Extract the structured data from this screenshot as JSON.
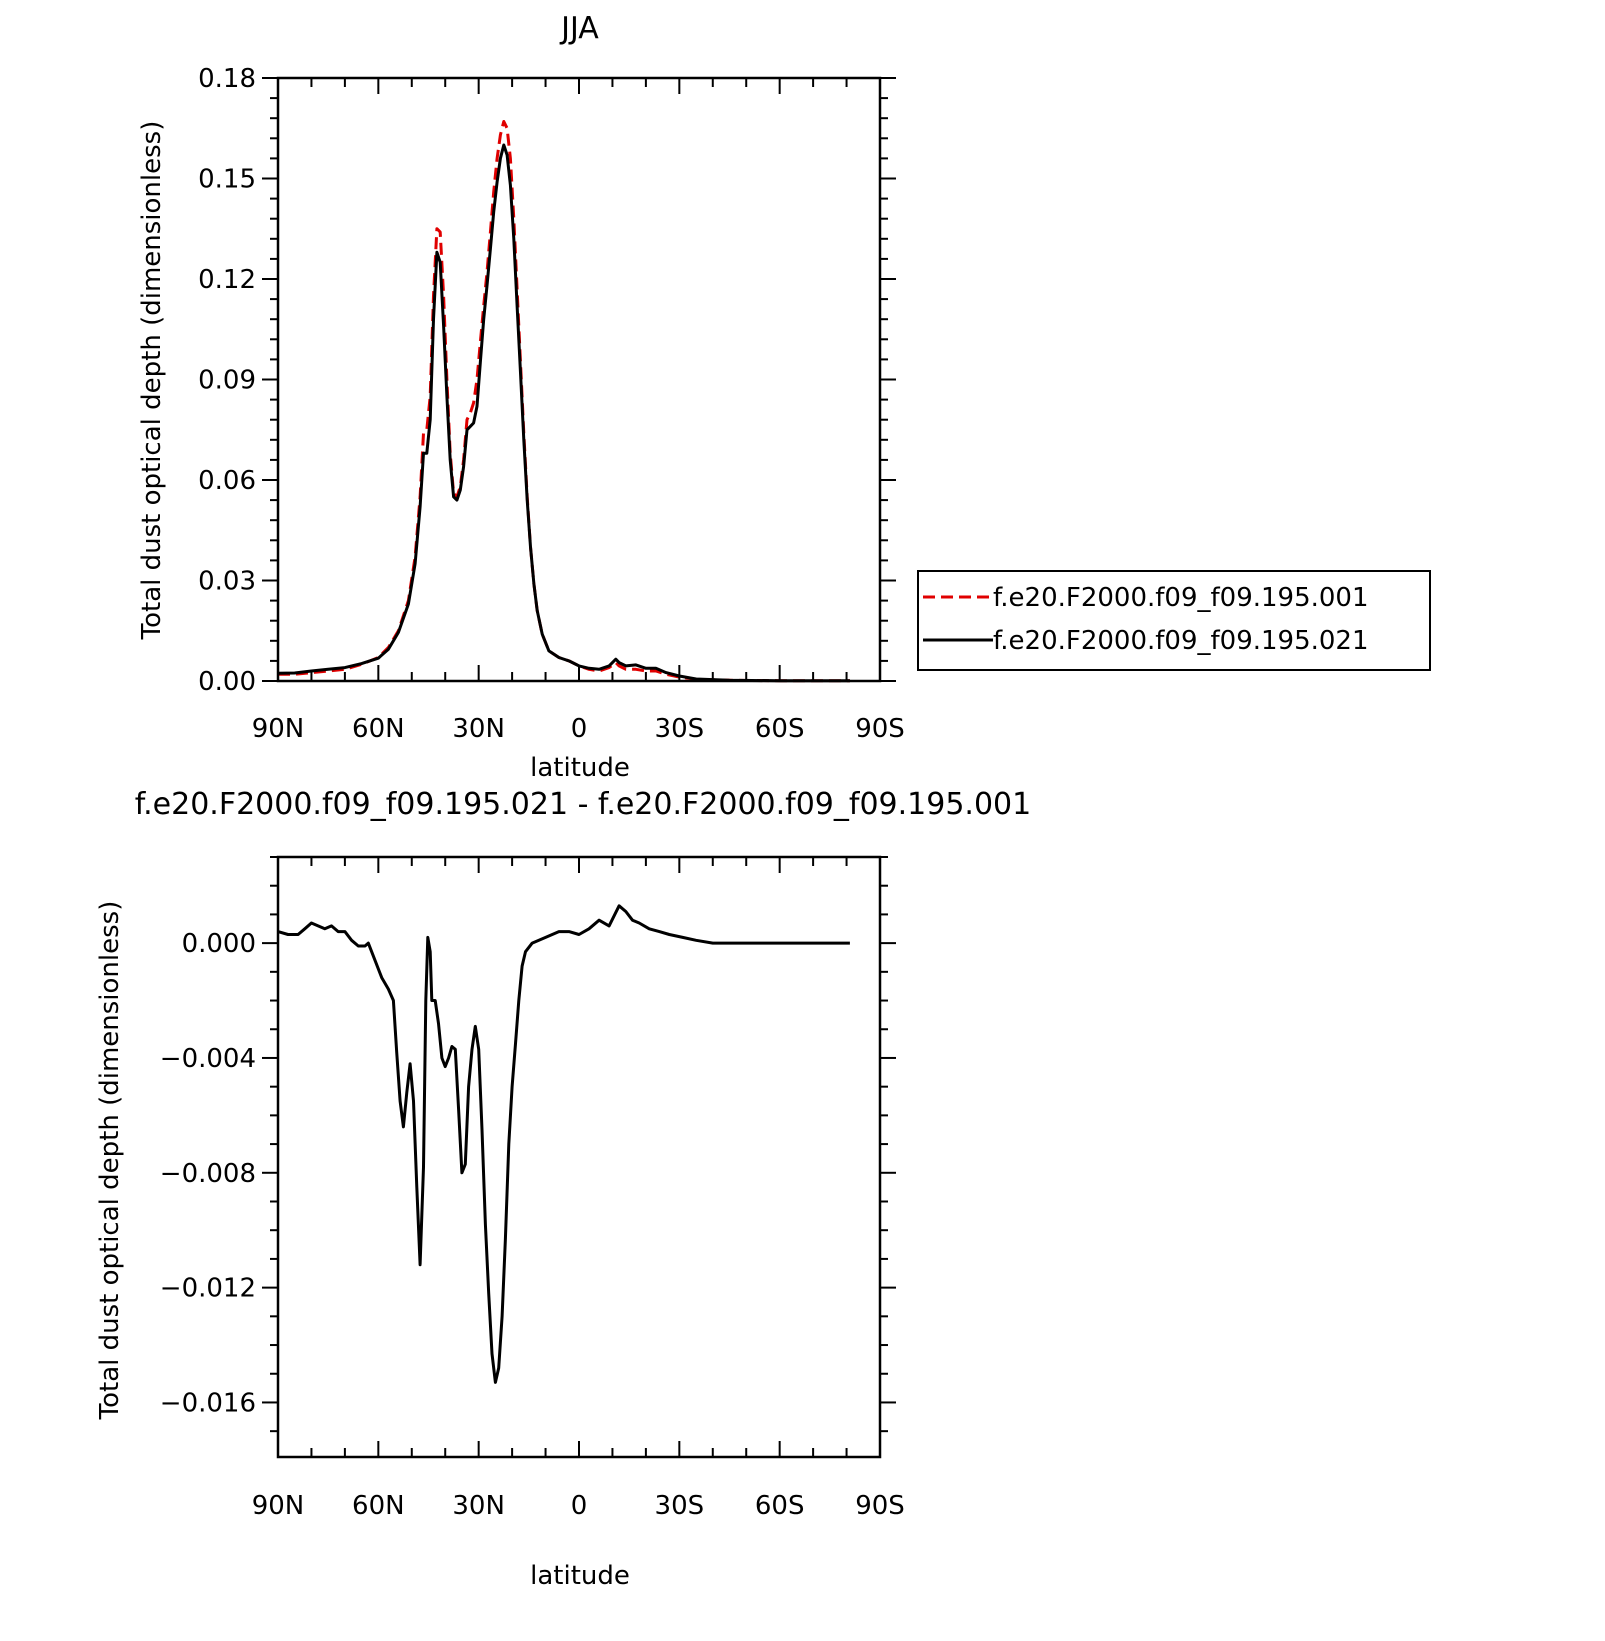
{
  "chart_data": [
    {
      "type": "line",
      "title": "JJA",
      "xlabel": "latitude",
      "ylabel": "Total dust optical depth (dimensionless)",
      "xlim": [
        90,
        -90
      ],
      "ylim": [
        0,
        0.18
      ],
      "xticks": [
        {
          "value": 90,
          "label": "90N"
        },
        {
          "value": 60,
          "label": "60N"
        },
        {
          "value": 30,
          "label": "30N"
        },
        {
          "value": 0,
          "label": "0"
        },
        {
          "value": -30,
          "label": "30S"
        },
        {
          "value": -60,
          "label": "60S"
        },
        {
          "value": -90,
          "label": "90S"
        }
      ],
      "yticks": [
        {
          "value": 0,
          "label": "0.00"
        },
        {
          "value": 0.03,
          "label": "0.03"
        },
        {
          "value": 0.06,
          "label": "0.06"
        },
        {
          "value": 0.09,
          "label": "0.09"
        },
        {
          "value": 0.12,
          "label": "0.12"
        },
        {
          "value": 0.15,
          "label": "0.15"
        },
        {
          "value": 0.18,
          "label": "0.18"
        }
      ],
      "legend_position": "right",
      "series": [
        {
          "name": "f.e20.F2000.f09_f09.195.001",
          "color": "#e00000",
          "dash": "dashed",
          "points": [
            [
              90,
              0.002
            ],
            [
              85,
              0.002
            ],
            [
              80,
              0.0025
            ],
            [
              75,
              0.003
            ],
            [
              70,
              0.0035
            ],
            [
              65,
              0.005
            ],
            [
              60,
              0.007
            ],
            [
              57,
              0.01
            ],
            [
              54,
              0.015
            ],
            [
              51,
              0.024
            ],
            [
              49,
              0.037
            ],
            [
              47.5,
              0.055
            ],
            [
              46.5,
              0.074
            ],
            [
              45.5,
              0.075
            ],
            [
              44.5,
              0.085
            ],
            [
              43.5,
              0.115
            ],
            [
              42.5,
              0.135
            ],
            [
              41.5,
              0.134
            ],
            [
              40.5,
              0.115
            ],
            [
              39.5,
              0.09
            ],
            [
              38.5,
              0.068
            ],
            [
              37.5,
              0.056
            ],
            [
              36.5,
              0.055
            ],
            [
              35.5,
              0.058
            ],
            [
              34.5,
              0.066
            ],
            [
              33.5,
              0.078
            ],
            [
              32.5,
              0.08
            ],
            [
              31.5,
              0.083
            ],
            [
              30.5,
              0.09
            ],
            [
              29.5,
              0.101
            ],
            [
              28.5,
              0.112
            ],
            [
              27.5,
              0.122
            ],
            [
              26.5,
              0.134
            ],
            [
              25.5,
              0.146
            ],
            [
              24.5,
              0.156
            ],
            [
              23.5,
              0.163
            ],
            [
              22.5,
              0.167
            ],
            [
              21.5,
              0.165
            ],
            [
              20.5,
              0.156
            ],
            [
              19.5,
              0.138
            ],
            [
              18.5,
              0.117
            ],
            [
              17.5,
              0.095
            ],
            [
              16.5,
              0.074
            ],
            [
              15.5,
              0.055
            ],
            [
              14.5,
              0.04
            ],
            [
              13.5,
              0.029
            ],
            [
              12.5,
              0.021
            ],
            [
              11,
              0.014
            ],
            [
              9,
              0.009
            ],
            [
              6,
              0.007
            ],
            [
              3,
              0.006
            ],
            [
              0,
              0.0045
            ],
            [
              -3,
              0.0035
            ],
            [
              -6,
              0.003
            ],
            [
              -9,
              0.004
            ],
            [
              -11,
              0.0055
            ],
            [
              -12,
              0.0045
            ],
            [
              -14,
              0.0035
            ],
            [
              -17,
              0.0035
            ],
            [
              -20,
              0.003
            ],
            [
              -23,
              0.003
            ],
            [
              -26,
              0.002
            ],
            [
              -30,
              0.0012
            ],
            [
              -35,
              0.0005
            ],
            [
              -45,
              0.0002
            ],
            [
              -60,
              0.0001
            ],
            [
              -75,
              0.0001
            ],
            [
              -81,
              0.0001
            ]
          ]
        },
        {
          "name": "f.e20.F2000.f09_f09.195.021",
          "color": "#000000",
          "dash": "solid",
          "points": [
            [
              90,
              0.0023
            ],
            [
              85,
              0.0024
            ],
            [
              80,
              0.003
            ],
            [
              75,
              0.0035
            ],
            [
              70,
              0.004
            ],
            [
              65,
              0.0052
            ],
            [
              60,
              0.0068
            ],
            [
              57,
              0.0095
            ],
            [
              54,
              0.0145
            ],
            [
              51,
              0.023
            ],
            [
              49,
              0.035
            ],
            [
              47.5,
              0.052
            ],
            [
              46.5,
              0.068
            ],
            [
              45.5,
              0.068
            ],
            [
              44.5,
              0.078
            ],
            [
              43.5,
              0.108
            ],
            [
              42.5,
              0.128
            ],
            [
              41.5,
              0.125
            ],
            [
              40.5,
              0.106
            ],
            [
              39.5,
              0.085
            ],
            [
              38.5,
              0.066
            ],
            [
              37.5,
              0.055
            ],
            [
              36.5,
              0.054
            ],
            [
              35.5,
              0.057
            ],
            [
              34.5,
              0.064
            ],
            [
              33.5,
              0.075
            ],
            [
              32.5,
              0.076
            ],
            [
              31.5,
              0.077
            ],
            [
              30.5,
              0.082
            ],
            [
              29.5,
              0.095
            ],
            [
              28.5,
              0.108
            ],
            [
              27.5,
              0.118
            ],
            [
              26.5,
              0.129
            ],
            [
              25.5,
              0.14
            ],
            [
              24.5,
              0.149
            ],
            [
              23.5,
              0.156
            ],
            [
              22.5,
              0.16
            ],
            [
              21.5,
              0.157
            ],
            [
              20.5,
              0.148
            ],
            [
              19.5,
              0.132
            ],
            [
              18.5,
              0.112
            ],
            [
              17.5,
              0.092
            ],
            [
              16.5,
              0.072
            ],
            [
              15.5,
              0.054
            ],
            [
              14.5,
              0.04
            ],
            [
              13.5,
              0.029
            ],
            [
              12.5,
              0.021
            ],
            [
              11,
              0.014
            ],
            [
              9,
              0.009
            ],
            [
              6,
              0.007
            ],
            [
              3,
              0.006
            ],
            [
              0,
              0.0045
            ],
            [
              -3,
              0.0038
            ],
            [
              -6,
              0.0035
            ],
            [
              -9,
              0.0045
            ],
            [
              -11,
              0.0065
            ],
            [
              -12,
              0.0055
            ],
            [
              -14,
              0.0045
            ],
            [
              -17,
              0.0048
            ],
            [
              -20,
              0.0038
            ],
            [
              -23,
              0.0038
            ],
            [
              -26,
              0.0025
            ],
            [
              -30,
              0.0015
            ],
            [
              -35,
              0.0006
            ],
            [
              -45,
              0.0002
            ],
            [
              -60,
              0.0001
            ],
            [
              -75,
              0.0001
            ],
            [
              -81,
              0.0001
            ]
          ]
        }
      ]
    },
    {
      "type": "line",
      "title": "f.e20.F2000.f09_f09.195.021 - f.e20.F2000.f09_f09.195.001",
      "xlabel": "latitude",
      "ylabel": "Total dust optical depth (dimensionless)",
      "xlim": [
        90,
        -90
      ],
      "ylim": [
        -0.0179,
        0.003
      ],
      "xticks": [
        {
          "value": 90,
          "label": "90N"
        },
        {
          "value": 60,
          "label": "60N"
        },
        {
          "value": 30,
          "label": "30N"
        },
        {
          "value": 0,
          "label": "0"
        },
        {
          "value": -30,
          "label": "30S"
        },
        {
          "value": -60,
          "label": "60S"
        },
        {
          "value": -90,
          "label": "90S"
        }
      ],
      "yticks": [
        {
          "value": 0,
          "label": "0.000"
        },
        {
          "value": -0.004,
          "label": "−0.004"
        },
        {
          "value": -0.008,
          "label": "−0.008"
        },
        {
          "value": -0.012,
          "label": "−0.012"
        },
        {
          "value": -0.016,
          "label": "−0.016"
        }
      ],
      "series": [
        {
          "color": "#000000",
          "dash": "solid",
          "points": [
            [
              90,
              0.0004
            ],
            [
              87,
              0.0003
            ],
            [
              84,
              0.0003
            ],
            [
              82,
              0.0005
            ],
            [
              80,
              0.0007
            ],
            [
              78,
              0.0006
            ],
            [
              76,
              0.0005
            ],
            [
              74,
              0.0006
            ],
            [
              72,
              0.0004
            ],
            [
              70,
              0.0004
            ],
            [
              68,
              0.0001
            ],
            [
              66,
              -0.0001
            ],
            [
              64,
              -0.0001
            ],
            [
              63,
              0.0
            ],
            [
              61,
              -0.0006
            ],
            [
              59,
              -0.0012
            ],
            [
              57,
              -0.0016
            ],
            [
              55.5,
              -0.002
            ],
            [
              54.5,
              -0.0038
            ],
            [
              53.5,
              -0.0055
            ],
            [
              52.5,
              -0.0064
            ],
            [
              51.5,
              -0.0052
            ],
            [
              50.5,
              -0.0042
            ],
            [
              49.5,
              -0.0055
            ],
            [
              48.5,
              -0.0085
            ],
            [
              47.5,
              -0.0112
            ],
            [
              46.5,
              -0.0078
            ],
            [
              45.8,
              -0.002
            ],
            [
              45.2,
              0.0002
            ],
            [
              44.5,
              -0.0003
            ],
            [
              44,
              -0.002
            ],
            [
              43,
              -0.002
            ],
            [
              42,
              -0.0028
            ],
            [
              41,
              -0.004
            ],
            [
              40,
              -0.0043
            ],
            [
              39,
              -0.004
            ],
            [
              38,
              -0.0036
            ],
            [
              37,
              -0.0037
            ],
            [
              36,
              -0.0058
            ],
            [
              35,
              -0.008
            ],
            [
              34,
              -0.0077
            ],
            [
              33,
              -0.005
            ],
            [
              32,
              -0.0037
            ],
            [
              31,
              -0.0029
            ],
            [
              30,
              -0.0037
            ],
            [
              29,
              -0.0065
            ],
            [
              28,
              -0.0098
            ],
            [
              27,
              -0.0122
            ],
            [
              26,
              -0.0143
            ],
            [
              25,
              -0.0153
            ],
            [
              24,
              -0.0148
            ],
            [
              23,
              -0.013
            ],
            [
              22,
              -0.0103
            ],
            [
              21,
              -0.007
            ],
            [
              20,
              -0.005
            ],
            [
              19,
              -0.0035
            ],
            [
              18,
              -0.002
            ],
            [
              17,
              -0.0008
            ],
            [
              16,
              -0.0003
            ],
            [
              14,
              0.0
            ],
            [
              10,
              0.0002
            ],
            [
              6,
              0.0004
            ],
            [
              3,
              0.0004
            ],
            [
              0,
              0.0003
            ],
            [
              -3,
              0.0005
            ],
            [
              -6,
              0.0008
            ],
            [
              -9,
              0.0006
            ],
            [
              -12,
              0.0013
            ],
            [
              -14,
              0.0011
            ],
            [
              -16,
              0.0008
            ],
            [
              -18,
              0.0007
            ],
            [
              -21,
              0.0005
            ],
            [
              -24,
              0.0004
            ],
            [
              -27,
              0.0003
            ],
            [
              -31,
              0.0002
            ],
            [
              -35,
              0.0001
            ],
            [
              -40,
              0.0
            ],
            [
              -50,
              0.0
            ],
            [
              -60,
              0.0
            ],
            [
              -70,
              0.0
            ],
            [
              -81,
              0.0
            ]
          ]
        }
      ]
    }
  ]
}
